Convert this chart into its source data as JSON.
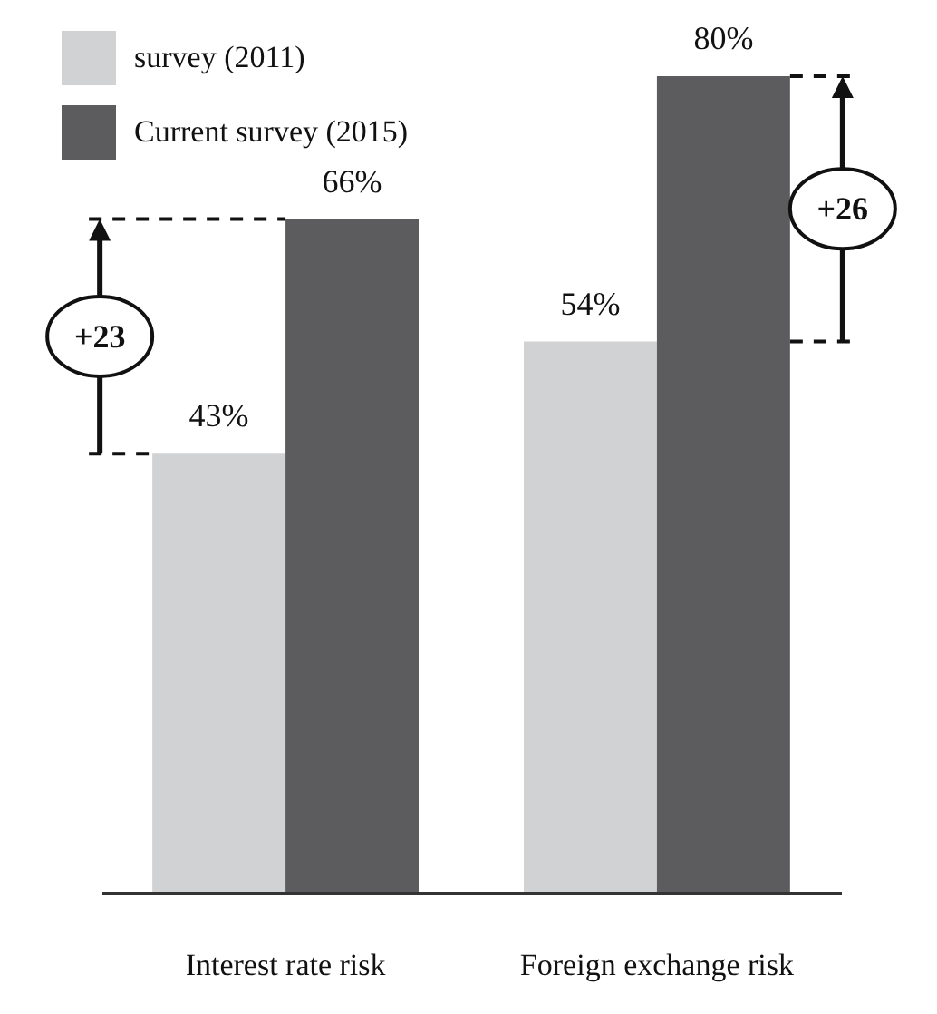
{
  "chart_data": {
    "type": "bar",
    "categories": [
      "Interest rate risk",
      "Foreign exchange risk"
    ],
    "series": [
      {
        "name": "survey (2011)",
        "color": "#d1d2d4",
        "values": [
          43,
          54
        ],
        "value_labels": [
          "43%",
          "54%"
        ]
      },
      {
        "name": "Current survey (2015)",
        "color": "#5c5c5e",
        "values": [
          66,
          80
        ],
        "value_labels": [
          "66%",
          "80%"
        ]
      }
    ],
    "legend": "top left",
    "grid": false,
    "annotations": [
      "+23",
      "+26"
    ]
  }
}
